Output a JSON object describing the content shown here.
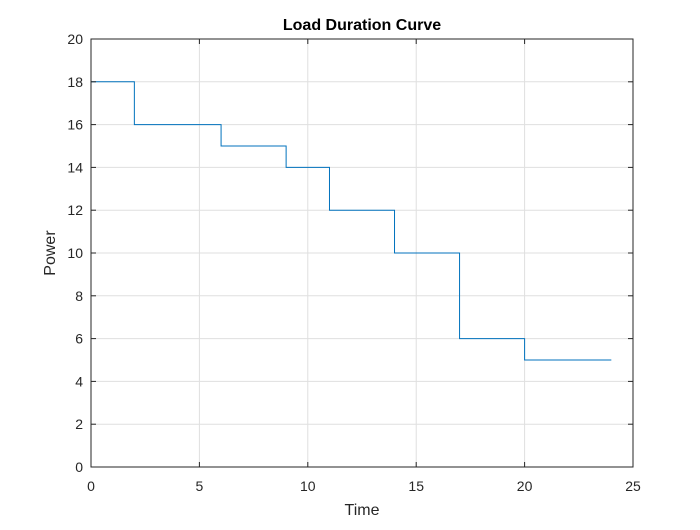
{
  "chart_data": {
    "type": "line",
    "subtype": "stairs",
    "title": "Load Duration Curve",
    "xlabel": "Time",
    "ylabel": "Power",
    "xlim": [
      0,
      25
    ],
    "ylim": [
      0,
      20
    ],
    "xticks": [
      0,
      5,
      10,
      15,
      20,
      25
    ],
    "yticks": [
      0,
      2,
      4,
      6,
      8,
      10,
      12,
      14,
      16,
      18,
      20
    ],
    "grid": true,
    "legend": "none",
    "series": [
      {
        "color": "#0072BD",
        "points": [
          [
            0,
            18
          ],
          [
            2,
            18
          ],
          [
            2,
            16
          ],
          [
            6,
            16
          ],
          [
            6,
            15
          ],
          [
            9,
            15
          ],
          [
            9,
            14
          ],
          [
            11,
            14
          ],
          [
            11,
            12
          ],
          [
            14,
            12
          ],
          [
            14,
            10
          ],
          [
            17,
            10
          ],
          [
            17,
            6
          ],
          [
            20,
            6
          ],
          [
            20,
            5
          ],
          [
            24,
            5
          ]
        ]
      }
    ]
  }
}
